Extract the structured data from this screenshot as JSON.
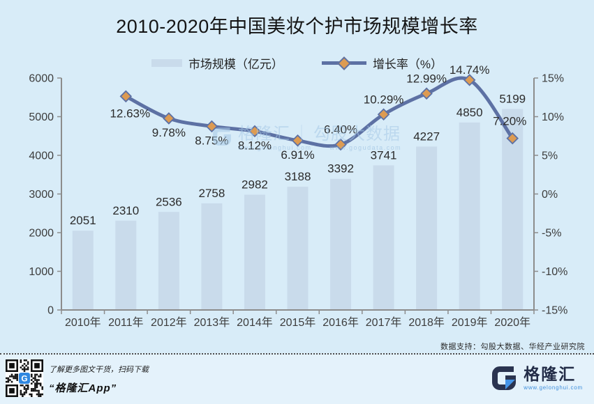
{
  "title": "2010-2020年中国美妆个护市场规模增长率",
  "legend": [
    {
      "label": "市场规模（亿元）"
    },
    {
      "label": "增长率（%）"
    }
  ],
  "chart_data": {
    "type": "bar",
    "subtype": "combo bar+line, dual axis",
    "categories": [
      "2010年",
      "2011年",
      "2012年",
      "2013年",
      "2014年",
      "2015年",
      "2016年",
      "2017年",
      "2018年",
      "2019年",
      "2020年"
    ],
    "series": [
      {
        "name": "市场规模（亿元）",
        "type": "bar",
        "axis": "left",
        "values": [
          2051,
          2310,
          2536,
          2758,
          2982,
          3188,
          3392,
          3741,
          4227,
          4850,
          5199
        ]
      },
      {
        "name": "增长率（%）",
        "type": "line",
        "axis": "right",
        "values": [
          null,
          12.63,
          9.78,
          8.75,
          8.12,
          6.91,
          6.4,
          10.29,
          12.99,
          14.74,
          7.2
        ],
        "label_side": [
          null,
          "below",
          "below",
          "below",
          "below",
          "below",
          "above",
          "above",
          "above",
          "above",
          "above"
        ]
      }
    ],
    "left_axis": {
      "min": 0,
      "max": 6000,
      "step": 1000,
      "labels": [
        "0",
        "1000",
        "2000",
        "3000",
        "4000",
        "5000",
        "6000"
      ]
    },
    "right_axis": {
      "min": -15,
      "max": 15,
      "step": 5,
      "labels": [
        "-15%",
        "-10%",
        "-5%",
        "0%",
        "5%",
        "10%",
        "15%"
      ]
    },
    "grid": false,
    "legend_position": "top",
    "colors": {
      "bar": "#c9dbeb",
      "line": "#5d71a4",
      "marker": "#dd9b52",
      "axis": "#8c8c8c",
      "background": "#d8ecf8"
    }
  },
  "watermark": {
    "brand": "格隆汇",
    "divider": "｜",
    "name": "勾股大数据",
    "url_left": "www.gelonghui.com",
    "url_right": "www.gogudata.com"
  },
  "source_note": "数据支持：勾股大数据、华经产业研究院",
  "footer": {
    "qr_caption_line1": "了解更多图文干货，扫码下载",
    "qr_caption_line2": "“格隆汇App”",
    "logo_text": "格隆汇",
    "logo_url": "www.gelonghui.com"
  }
}
